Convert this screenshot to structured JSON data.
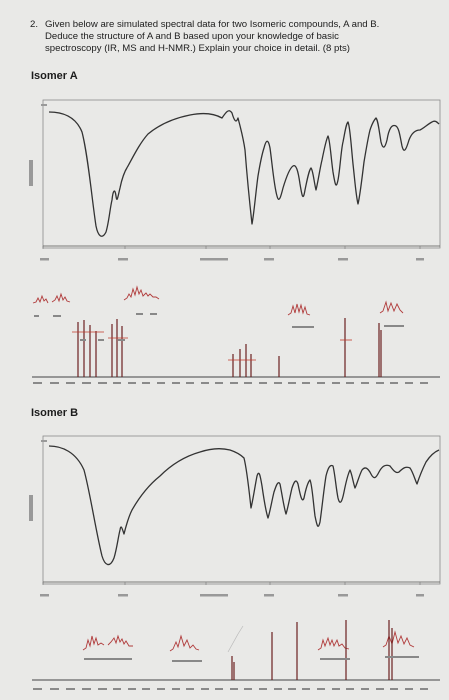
{
  "question": {
    "number": "2.",
    "line1": "Given below are simulated spectral data for two Isomeric compounds, A and B.",
    "line2": "Deduce the structure of A and B based upon your knowledge of basic",
    "line3": "spectroscopy (IR, MS and H-NMR.) Explain your choice in detail.",
    "points": "(8 pts)"
  },
  "isomer_a": {
    "title": "Isomer A"
  },
  "isomer_b": {
    "title": "Isomer B"
  },
  "colors": {
    "page": "#e9e9e7",
    "trace": "#333333",
    "nmr_integration": "#c0392b",
    "nmr_peak": "#6b2020"
  }
}
